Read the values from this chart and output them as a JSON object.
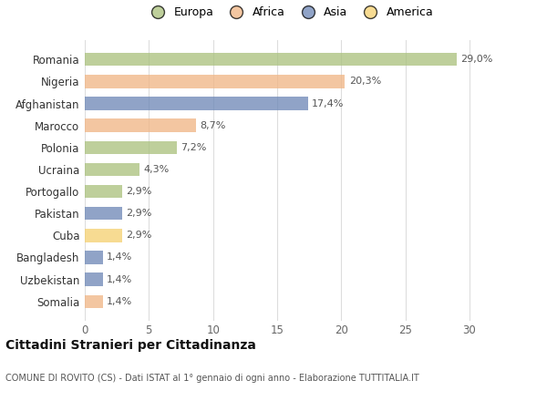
{
  "categories": [
    "Romania",
    "Nigeria",
    "Afghanistan",
    "Marocco",
    "Polonia",
    "Ucraina",
    "Portogallo",
    "Pakistan",
    "Cuba",
    "Bangladesh",
    "Uzbekistan",
    "Somalia"
  ],
  "values": [
    29.0,
    20.3,
    17.4,
    8.7,
    7.2,
    4.3,
    2.9,
    2.9,
    2.9,
    1.4,
    1.4,
    1.4
  ],
  "labels": [
    "29,0%",
    "20,3%",
    "17,4%",
    "8,7%",
    "7,2%",
    "4,3%",
    "2,9%",
    "2,9%",
    "2,9%",
    "1,4%",
    "1,4%",
    "1,4%"
  ],
  "colors": [
    "#a8c07a",
    "#f0b482",
    "#6b85b5",
    "#f0b482",
    "#a8c07a",
    "#a8c07a",
    "#a8c07a",
    "#6b85b5",
    "#f5d06e",
    "#6b85b5",
    "#6b85b5",
    "#f0b482"
  ],
  "legend_labels": [
    "Europa",
    "Africa",
    "Asia",
    "America"
  ],
  "legend_colors": [
    "#a8c07a",
    "#f0b482",
    "#6b85b5",
    "#f5d06e"
  ],
  "title": "Cittadini Stranieri per Cittadinanza",
  "subtitle": "COMUNE DI ROVITO (CS) - Dati ISTAT al 1° gennaio di ogni anno - Elaborazione TUTTITALIA.IT",
  "xlim": [
    0,
    32
  ],
  "xticks": [
    0,
    5,
    10,
    15,
    20,
    25,
    30
  ],
  "bg_color": "#ffffff",
  "grid_color": "#dddddd",
  "bar_alpha": 0.75,
  "bar_height": 0.6
}
